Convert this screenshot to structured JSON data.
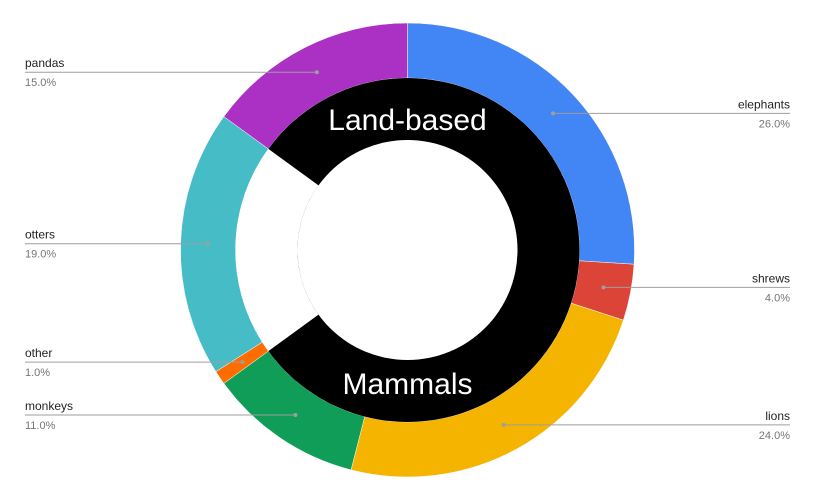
{
  "chart_data": {
    "type": "pie",
    "subtype": "donut",
    "center_text": [
      "Land-based",
      "Mammals"
    ],
    "slices": [
      {
        "label": "elephants",
        "value": 26.0,
        "pct_label": "26.0%",
        "color": "#4285f4",
        "side": "right"
      },
      {
        "label": "shrews",
        "value": 4.0,
        "pct_label": "4.0%",
        "color": "#db4437",
        "side": "right"
      },
      {
        "label": "lions",
        "value": 24.0,
        "pct_label": "24.0%",
        "color": "#f4b400",
        "side": "right"
      },
      {
        "label": "monkeys",
        "value": 11.0,
        "pct_label": "11.0%",
        "color": "#0f9d58",
        "side": "left"
      },
      {
        "label": "other",
        "value": 1.0,
        "pct_label": "1.0%",
        "color": "#ff6d00",
        "side": "left"
      },
      {
        "label": "otters",
        "value": 19.0,
        "pct_label": "19.0%",
        "color": "#46bdc6",
        "side": "left"
      },
      {
        "label": "pandas",
        "value": 15.0,
        "pct_label": "15.0%",
        "color": "#ab30c4",
        "side": "left"
      }
    ],
    "center_disc_color": "#000000",
    "legend": "none",
    "labels": "outside-with-leaders"
  }
}
